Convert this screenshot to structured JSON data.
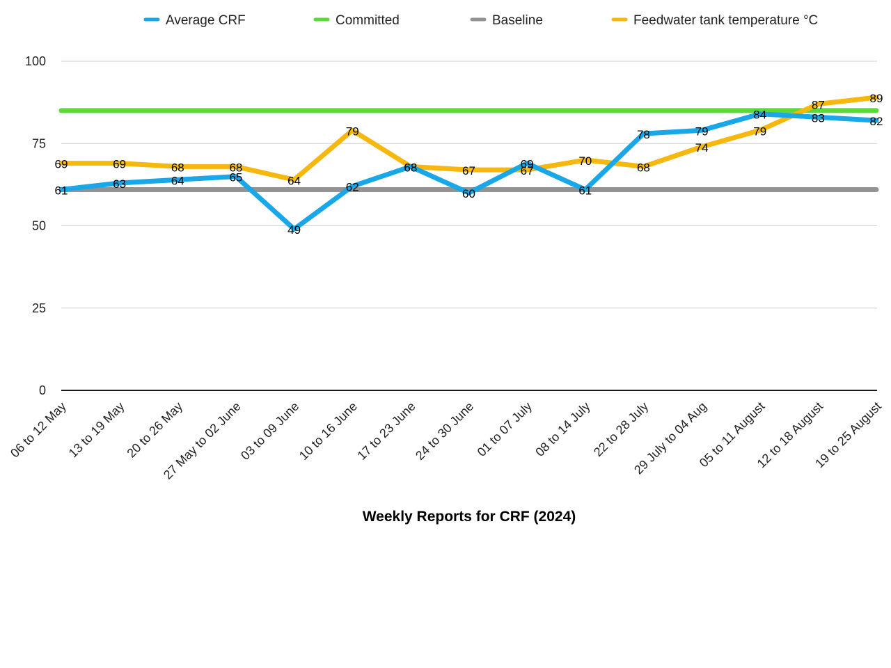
{
  "chart_data": {
    "type": "line",
    "title": "",
    "xlabel": "Weekly Reports for CRF (2024)",
    "ylabel": "",
    "ylim": [
      0,
      100
    ],
    "yticks": [
      0,
      25,
      50,
      75,
      100
    ],
    "grid": true,
    "legend_position": "top",
    "categories": [
      "06 to 12 May",
      "13 to 19 May",
      "20 to 26 May",
      "27 May to 02 June",
      "03 to 09 June",
      "10 to 16 June",
      "17 to 23 June",
      "24 to 30 June",
      "01 to 07 July",
      "08 to 14 July",
      "22 to 28 July",
      "29 July to 04 Aug",
      "05 to 11 August",
      "12 to 18 August",
      "19 to 25 August"
    ],
    "series": [
      {
        "name": "Average CRF",
        "color": "#1AA7E8",
        "show_labels": true,
        "values": [
          61,
          63,
          64,
          65,
          49,
          62,
          68,
          60,
          69,
          61,
          78,
          79,
          84,
          83,
          82
        ]
      },
      {
        "name": "Committed",
        "color": "#5CD93A",
        "show_labels": false,
        "values": [
          85,
          85,
          85,
          85,
          85,
          85,
          85,
          85,
          85,
          85,
          85,
          85,
          85,
          85,
          85
        ]
      },
      {
        "name": "Baseline",
        "color": "#939393",
        "show_labels": false,
        "values": [
          61,
          61,
          61,
          61,
          61,
          61,
          61,
          61,
          61,
          61,
          61,
          61,
          61,
          61,
          61
        ]
      },
      {
        "name": "Feedwater tank temperature °C",
        "color": "#F6B80E",
        "show_labels": true,
        "values": [
          69,
          69,
          68,
          68,
          64,
          79,
          68,
          67,
          67,
          70,
          68,
          74,
          79,
          87,
          89
        ]
      }
    ]
  }
}
